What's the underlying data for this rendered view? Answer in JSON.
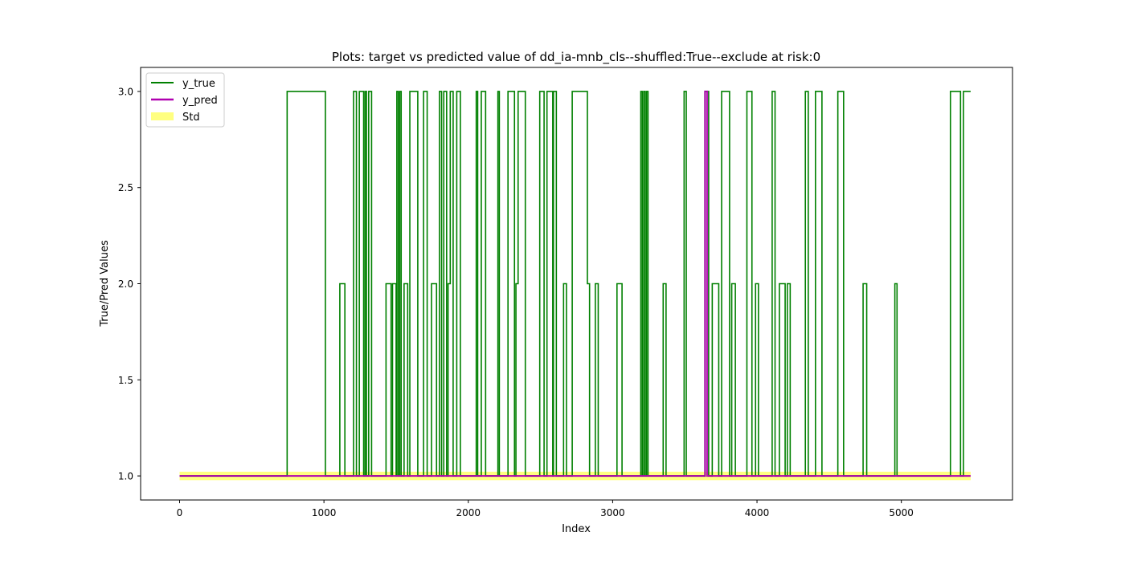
{
  "chart_data": {
    "type": "line",
    "title": "Plots: target vs predicted value of dd_ia-mnb_cls--shuffled:True--exclude at risk:0",
    "xlabel": "Index",
    "ylabel": "True/Pred Values",
    "xlim": [
      -270,
      5770
    ],
    "ylim": [
      0.875,
      3.125
    ],
    "x_ticks": [
      0,
      1000,
      2000,
      3000,
      4000,
      5000
    ],
    "x_tick_labels": [
      "0",
      "1000",
      "2000",
      "3000",
      "4000",
      "5000"
    ],
    "y_ticks": [
      1.0,
      1.5,
      2.0,
      2.5,
      3.0
    ],
    "y_tick_labels": [
      "1.0",
      "1.5",
      "2.0",
      "2.5",
      "3.0"
    ],
    "grid": false,
    "legend_position": "top-left",
    "series": [
      {
        "name": "y_true",
        "color": "#008000",
        "style": "step",
        "segments": [
          [
            0,
            1
          ],
          [
            745,
            3
          ],
          [
            1010,
            1
          ],
          [
            1110,
            2
          ],
          [
            1145,
            1
          ],
          [
            1205,
            3
          ],
          [
            1225,
            1
          ],
          [
            1245,
            3
          ],
          [
            1275,
            1
          ],
          [
            1285,
            3
          ],
          [
            1295,
            1
          ],
          [
            1310,
            3
          ],
          [
            1330,
            1
          ],
          [
            1430,
            2
          ],
          [
            1465,
            1
          ],
          [
            1475,
            2
          ],
          [
            1500,
            1
          ],
          [
            1505,
            3
          ],
          [
            1515,
            1
          ],
          [
            1525,
            3
          ],
          [
            1535,
            1
          ],
          [
            1555,
            2
          ],
          [
            1580,
            1
          ],
          [
            1595,
            3
          ],
          [
            1650,
            1
          ],
          [
            1690,
            3
          ],
          [
            1715,
            1
          ],
          [
            1745,
            2
          ],
          [
            1780,
            1
          ],
          [
            1800,
            3
          ],
          [
            1815,
            1
          ],
          [
            1830,
            3
          ],
          [
            1850,
            1
          ],
          [
            1860,
            2
          ],
          [
            1875,
            3
          ],
          [
            1895,
            1
          ],
          [
            1920,
            3
          ],
          [
            1945,
            1
          ],
          [
            2055,
            3
          ],
          [
            2065,
            1
          ],
          [
            2090,
            3
          ],
          [
            2120,
            1
          ],
          [
            2205,
            3
          ],
          [
            2215,
            1
          ],
          [
            2275,
            3
          ],
          [
            2320,
            1
          ],
          [
            2330,
            2
          ],
          [
            2345,
            3
          ],
          [
            2395,
            1
          ],
          [
            2495,
            3
          ],
          [
            2525,
            1
          ],
          [
            2545,
            3
          ],
          [
            2585,
            1
          ],
          [
            2590,
            3
          ],
          [
            2610,
            1
          ],
          [
            2660,
            2
          ],
          [
            2680,
            1
          ],
          [
            2720,
            3
          ],
          [
            2825,
            2
          ],
          [
            2840,
            1
          ],
          [
            2880,
            2
          ],
          [
            2900,
            1
          ],
          [
            3030,
            2
          ],
          [
            3065,
            1
          ],
          [
            3195,
            3
          ],
          [
            3205,
            1
          ],
          [
            3215,
            3
          ],
          [
            3225,
            1
          ],
          [
            3235,
            3
          ],
          [
            3245,
            1
          ],
          [
            3350,
            2
          ],
          [
            3370,
            1
          ],
          [
            3495,
            3
          ],
          [
            3510,
            1
          ],
          [
            3640,
            3
          ],
          [
            3665,
            1
          ],
          [
            3690,
            2
          ],
          [
            3735,
            1
          ],
          [
            3755,
            3
          ],
          [
            3810,
            1
          ],
          [
            3825,
            2
          ],
          [
            3850,
            1
          ],
          [
            3930,
            3
          ],
          [
            3965,
            1
          ],
          [
            3990,
            2
          ],
          [
            4010,
            1
          ],
          [
            4105,
            3
          ],
          [
            4125,
            1
          ],
          [
            4155,
            2
          ],
          [
            4195,
            1
          ],
          [
            4210,
            2
          ],
          [
            4230,
            1
          ],
          [
            4335,
            3
          ],
          [
            4355,
            1
          ],
          [
            4405,
            3
          ],
          [
            4450,
            1
          ],
          [
            4560,
            3
          ],
          [
            4600,
            1
          ],
          [
            4735,
            2
          ],
          [
            4760,
            1
          ],
          [
            4955,
            2
          ],
          [
            4970,
            1
          ],
          [
            5340,
            3
          ],
          [
            5410,
            1
          ],
          [
            5430,
            3
          ],
          [
            5480,
            3
          ]
        ]
      },
      {
        "name": "y_pred",
        "color": "#b000b0",
        "style": "step",
        "segments": [
          [
            0,
            1
          ],
          [
            3640,
            3
          ],
          [
            3655,
            1
          ],
          [
            5480,
            1
          ]
        ]
      },
      {
        "name": "Std",
        "color": "#ffff80",
        "style": "band",
        "center": 1.0,
        "half_width": 0.022,
        "x_range": [
          0,
          5480
        ]
      }
    ]
  }
}
